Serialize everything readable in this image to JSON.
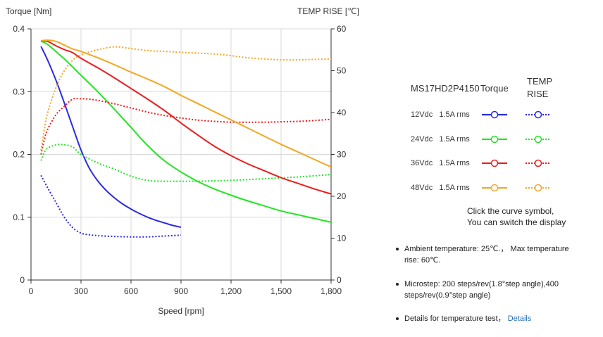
{
  "chart_data": {
    "type": "line",
    "xlabel": "Speed [rpm]",
    "ylabel_left": "Torque  [Nm]",
    "ylabel_right": "TEMP RISE [℃]",
    "xlim": [
      0,
      1800
    ],
    "ylim_left": [
      0,
      0.4
    ],
    "ylim_right": [
      0,
      60
    ],
    "x_ticks": [
      0,
      300,
      600,
      900,
      1200,
      1500,
      1800
    ],
    "x_tick_labels": [
      "0",
      "300",
      "600",
      "900",
      "1,200",
      "1,500",
      "1,800"
    ],
    "y_left_ticks": [
      0,
      0.1,
      0.2,
      0.3,
      0.4
    ],
    "y_left_tick_labels": [
      "0",
      "0.1",
      "0.2",
      "0.3",
      "0.4"
    ],
    "y_right_ticks": [
      0,
      10,
      20,
      30,
      40,
      50,
      60
    ],
    "y_right_tick_labels": [
      "0",
      "10",
      "20",
      "30",
      "40",
      "50",
      "60"
    ],
    "grid": true,
    "series": [
      {
        "name": "12Vdc 1.5A rms Torque",
        "axis": "left",
        "style": "solid",
        "color": "#2a2ae6",
        "x": [
          60,
          100,
          150,
          200,
          250,
          300,
          350,
          400,
          450,
          500,
          550,
          600,
          650,
          700,
          750,
          800,
          850,
          900
        ],
        "y": [
          0.372,
          0.35,
          0.318,
          0.282,
          0.244,
          0.207,
          0.178,
          0.158,
          0.143,
          0.131,
          0.121,
          0.113,
          0.106,
          0.1,
          0.095,
          0.091,
          0.087,
          0.084
        ]
      },
      {
        "name": "12Vdc 1.5A rms TEMP RISE",
        "axis": "right",
        "style": "dotted",
        "color": "#2a2ae6",
        "x": [
          60,
          100,
          150,
          200,
          250,
          300,
          350,
          400,
          500,
          600,
          700,
          800,
          900
        ],
        "y": [
          25,
          22,
          18.5,
          15,
          12.5,
          11.2,
          10.8,
          10.6,
          10.4,
          10.3,
          10.3,
          10.5,
          10.7
        ]
      },
      {
        "name": "24Vdc 1.5A rms Torque",
        "axis": "left",
        "style": "solid",
        "color": "#22e622",
        "x": [
          60,
          100,
          200,
          300,
          400,
          500,
          600,
          700,
          800,
          900,
          1000,
          1100,
          1200,
          1300,
          1400,
          1500,
          1600,
          1700,
          1800
        ],
        "y": [
          0.38,
          0.375,
          0.352,
          0.326,
          0.3,
          0.272,
          0.243,
          0.214,
          0.19,
          0.172,
          0.157,
          0.145,
          0.135,
          0.126,
          0.118,
          0.11,
          0.104,
          0.098,
          0.092
        ]
      },
      {
        "name": "24Vdc 1.5A rms TEMP RISE",
        "axis": "right",
        "style": "dotted",
        "color": "#22e622",
        "x": [
          60,
          80,
          100,
          150,
          200,
          250,
          300,
          400,
          500,
          600,
          700,
          800,
          900,
          1000,
          1100,
          1200,
          1300,
          1400,
          1500,
          1600,
          1700,
          1800
        ],
        "y": [
          28.5,
          30.5,
          31.5,
          32.3,
          32.3,
          31.8,
          30,
          28,
          26.5,
          24.8,
          23.8,
          23.6,
          23.6,
          23.6,
          23.7,
          23.8,
          24,
          24.2,
          24.4,
          24.6,
          24.9,
          25.2
        ]
      },
      {
        "name": "36Vdc 1.5A rms Torque",
        "axis": "left",
        "style": "solid",
        "color": "#ee1c1c",
        "x": [
          60,
          100,
          150,
          200,
          250,
          300,
          400,
          500,
          600,
          700,
          800,
          900,
          1000,
          1100,
          1200,
          1300,
          1400,
          1500,
          1600,
          1700,
          1800
        ],
        "y": [
          0.381,
          0.38,
          0.373,
          0.367,
          0.362,
          0.353,
          0.338,
          0.322,
          0.305,
          0.288,
          0.27,
          0.25,
          0.231,
          0.213,
          0.198,
          0.185,
          0.174,
          0.163,
          0.154,
          0.145,
          0.137
        ]
      },
      {
        "name": "36Vdc 1.5A rms TEMP RISE",
        "axis": "right",
        "style": "dotted",
        "color": "#ee1c1c",
        "x": [
          60,
          80,
          100,
          150,
          200,
          250,
          300,
          350,
          400,
          500,
          600,
          700,
          800,
          900,
          1000,
          1100,
          1200,
          1300,
          1400,
          1500,
          1600,
          1700,
          1800
        ],
        "y": [
          30,
          33.5,
          36,
          39.5,
          41.5,
          43.2,
          43.3,
          43.2,
          42.9,
          42.1,
          41.1,
          40.1,
          39.3,
          38.7,
          38.2,
          37.9,
          37.7,
          37.7,
          37.7,
          37.8,
          37.9,
          38.1,
          38.4
        ]
      },
      {
        "name": "48Vdc 1.5A rms Torque",
        "axis": "left",
        "style": "solid",
        "color": "#f5a623",
        "x": [
          60,
          100,
          150,
          200,
          250,
          300,
          400,
          500,
          600,
          700,
          800,
          900,
          1000,
          1100,
          1200,
          1300,
          1400,
          1500,
          1600,
          1700,
          1800
        ],
        "y": [
          0.381,
          0.382,
          0.38,
          0.374,
          0.368,
          0.364,
          0.354,
          0.343,
          0.331,
          0.32,
          0.308,
          0.294,
          0.281,
          0.268,
          0.255,
          0.242,
          0.229,
          0.216,
          0.204,
          0.192,
          0.18
        ]
      },
      {
        "name": "48Vdc 1.5A rms TEMP RISE",
        "axis": "right",
        "style": "dotted",
        "color": "#f5a623",
        "x": [
          60,
          80,
          100,
          150,
          200,
          250,
          300,
          400,
          500,
          600,
          700,
          800,
          900,
          1000,
          1100,
          1200,
          1300,
          1400,
          1500,
          1600,
          1700,
          1800
        ],
        "y": [
          31,
          36,
          40,
          46,
          50,
          52.5,
          53.8,
          55,
          55.7,
          55.3,
          54.8,
          54.6,
          54.4,
          54.2,
          54,
          53.6,
          53.1,
          52.8,
          52.6,
          52.6,
          52.7,
          52.8
        ]
      }
    ]
  },
  "legend": {
    "model": "MS17HD2P4150",
    "torque_header": "Torque",
    "temp_header_line1": "TEMP",
    "temp_header_line2": "RISE",
    "rows": [
      {
        "label": "12Vdc   1.5A rms",
        "color": "#2a2ae6"
      },
      {
        "label": "24Vdc   1.5A rms",
        "color": "#22e622"
      },
      {
        "label": "36Vdc   1.5A rms",
        "color": "#ee1c1c"
      },
      {
        "label": "48Vdc   1.5A rms",
        "color": "#f5a623"
      }
    ],
    "note_line1": "Click the curve symbol,",
    "note_line2": "You can switch the display"
  },
  "notes": {
    "ambient": "Ambient temperature: 25℃.， Max temperature rise: 60℃.",
    "microstep": "Microstep: 200 steps/rev(1.8°step angle),400 steps/rev(0.9°step angle)",
    "details_text": "Details for temperature test，",
    "details_link": "Details"
  }
}
